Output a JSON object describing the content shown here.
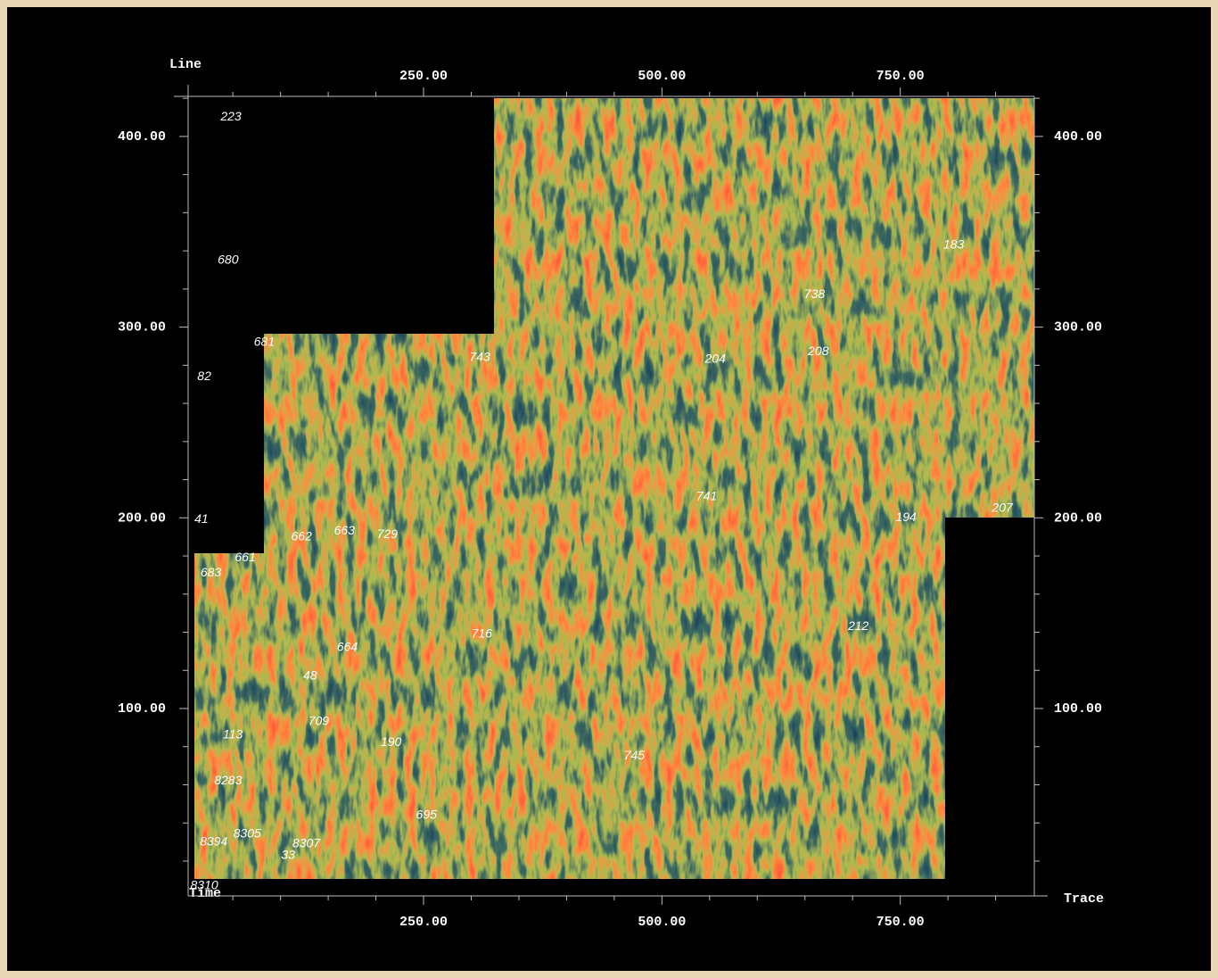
{
  "chart_data": {
    "type": "map",
    "xlabel": "Trace",
    "ylabel": "Line",
    "corner_label": "Time",
    "xlim": [
      0,
      890
    ],
    "ylim": [
      0,
      420
    ],
    "xticks": [
      {
        "value": 250,
        "label": "250.00"
      },
      {
        "value": 500,
        "label": "500.00"
      },
      {
        "value": 750,
        "label": "750.00"
      }
    ],
    "yticks": [
      {
        "value": 100,
        "label": "100.00"
      },
      {
        "value": 200,
        "label": "200.00"
      },
      {
        "value": 300,
        "label": "300.00"
      },
      {
        "value": 400,
        "label": "400.00"
      }
    ],
    "xminorticks": [
      50,
      100,
      150,
      200,
      300,
      350,
      400,
      450,
      550,
      600,
      650,
      700,
      800,
      850
    ],
    "yminorticks": [
      20,
      40,
      60,
      80,
      120,
      140,
      160,
      180,
      220,
      240,
      260,
      280,
      320,
      340,
      360,
      380,
      420
    ],
    "wells": [
      {
        "name": "223",
        "x": 48,
        "y": 410
      },
      {
        "name": "680",
        "x": 45,
        "y": 335
      },
      {
        "name": "681",
        "x": 83,
        "y": 292
      },
      {
        "name": "82",
        "x": 20,
        "y": 274
      },
      {
        "name": "743",
        "x": 309,
        "y": 284
      },
      {
        "name": "204",
        "x": 556,
        "y": 283
      },
      {
        "name": "208",
        "x": 664,
        "y": 287
      },
      {
        "name": "738",
        "x": 660,
        "y": 317
      },
      {
        "name": "183",
        "x": 806,
        "y": 343
      },
      {
        "name": "741",
        "x": 547,
        "y": 211
      },
      {
        "name": "194",
        "x": 756,
        "y": 200
      },
      {
        "name": "207",
        "x": 857,
        "y": 205
      },
      {
        "name": "41",
        "x": 17,
        "y": 199
      },
      {
        "name": "662",
        "x": 122,
        "y": 190
      },
      {
        "name": "663",
        "x": 167,
        "y": 193
      },
      {
        "name": "729",
        "x": 212,
        "y": 191
      },
      {
        "name": "661",
        "x": 63,
        "y": 179
      },
      {
        "name": "683",
        "x": 27,
        "y": 171
      },
      {
        "name": "716",
        "x": 311,
        "y": 139
      },
      {
        "name": "212",
        "x": 706,
        "y": 143
      },
      {
        "name": "664",
        "x": 170,
        "y": 132
      },
      {
        "name": "48",
        "x": 131,
        "y": 117
      },
      {
        "name": "709",
        "x": 140,
        "y": 93
      },
      {
        "name": "113",
        "x": 50,
        "y": 86
      },
      {
        "name": "190",
        "x": 216,
        "y": 82
      },
      {
        "name": "745",
        "x": 471,
        "y": 75
      },
      {
        "name": "8283",
        "x": 45,
        "y": 62
      },
      {
        "name": "695",
        "x": 253,
        "y": 44
      },
      {
        "name": "8305",
        "x": 65,
        "y": 34
      },
      {
        "name": "8394",
        "x": 30,
        "y": 30
      },
      {
        "name": "8307",
        "x": 127,
        "y": 29
      },
      {
        "name": "33",
        "x": 108,
        "y": 23
      },
      {
        "name": "8310",
        "x": 20,
        "y": 7
      }
    ]
  }
}
